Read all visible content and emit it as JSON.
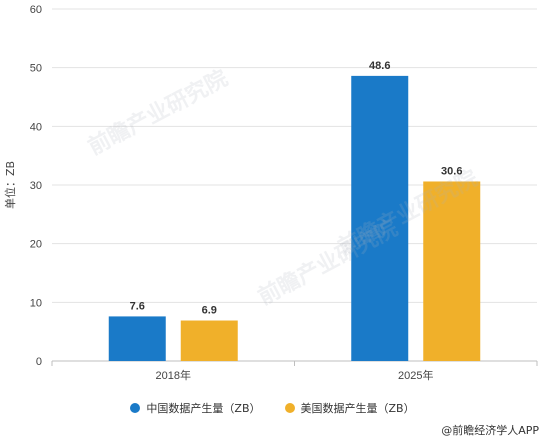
{
  "chart_data": {
    "type": "bar",
    "categories": [
      "2018年",
      "2025年"
    ],
    "series": [
      {
        "name": "中国数据产生量（ZB）",
        "color": "#1a7ac8",
        "values": [
          7.6,
          48.6
        ]
      },
      {
        "name": "美国数据产生量（ZB）",
        "color": "#f0b02a",
        "values": [
          6.9,
          30.6
        ]
      }
    ],
    "ylabel": "单位：ZB",
    "ylim": [
      0,
      60
    ],
    "yticks": [
      0,
      10,
      20,
      30,
      40,
      50,
      60
    ],
    "grid": true,
    "legend_position": "bottom"
  },
  "source": "@前瞻经济学人APP",
  "watermark": "前瞻产业研究院"
}
